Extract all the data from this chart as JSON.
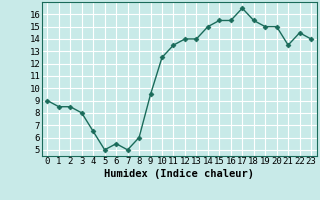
{
  "x": [
    0,
    1,
    2,
    3,
    4,
    5,
    6,
    7,
    8,
    9,
    10,
    11,
    12,
    13,
    14,
    15,
    16,
    17,
    18,
    19,
    20,
    21,
    22,
    23
  ],
  "y": [
    9,
    8.5,
    8.5,
    8,
    6.5,
    5,
    5.5,
    5,
    6,
    9.5,
    12.5,
    13.5,
    14,
    14,
    15,
    15.5,
    15.5,
    16.5,
    15.5,
    15,
    15,
    13.5,
    14.5,
    14
  ],
  "line_color": "#1a6b5a",
  "marker": "D",
  "markersize": 2.5,
  "linewidth": 1.0,
  "bg_color": "#c8eae8",
  "grid_color": "#ffffff",
  "xlabel": "Humidex (Indice chaleur)",
  "xlim": [
    -0.5,
    23.5
  ],
  "ylim": [
    4.5,
    17
  ],
  "yticks": [
    5,
    6,
    7,
    8,
    9,
    10,
    11,
    12,
    13,
    14,
    15,
    16
  ],
  "xticks": [
    0,
    1,
    2,
    3,
    4,
    5,
    6,
    7,
    8,
    9,
    10,
    11,
    12,
    13,
    14,
    15,
    16,
    17,
    18,
    19,
    20,
    21,
    22,
    23
  ],
  "xlabel_fontsize": 7.5,
  "tick_fontsize": 6.5
}
